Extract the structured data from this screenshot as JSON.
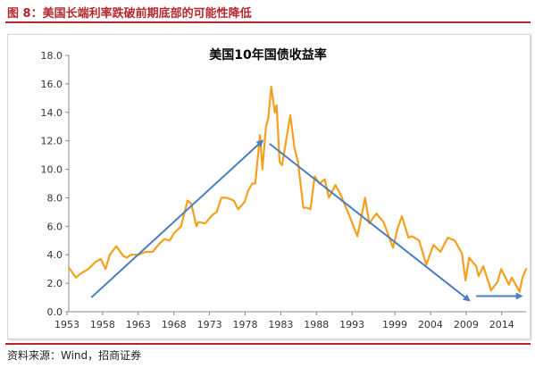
{
  "header": {
    "title": "图 8：美国长端利率跌破前期底部的可能性降低"
  },
  "footer": {
    "source": "资料来源：Wind，招商证券"
  },
  "colors": {
    "accent": "#b5272d",
    "series": "#f5a01e",
    "arrow": "#4a7ec2"
  },
  "chart_data": {
    "type": "line",
    "title": "美国10年国债收益率",
    "xlabel": "",
    "ylabel": "",
    "ylim": [
      0,
      18
    ],
    "yticks": [
      "0.0",
      "2.0",
      "4.0",
      "6.0",
      "8.0",
      "10.0",
      "12.0",
      "14.0",
      "16.0",
      "18.0"
    ],
    "xticks": [
      "1953",
      "1958",
      "1963",
      "1968",
      "1973",
      "1978",
      "1983",
      "1988",
      "1993",
      "1999",
      "2004",
      "2009",
      "2014"
    ],
    "x_range": [
      "1953-04",
      "2017-06"
    ],
    "grid": false,
    "legend": "none",
    "series": [
      {
        "x": [
          "1953-04",
          "1954-04",
          "1955-01",
          "1956-01",
          "1957-01",
          "1957-10",
          "1958-06",
          "1959-01",
          "1959-12",
          "1960-12",
          "1961-06",
          "1962-01",
          "1963-01",
          "1964-01",
          "1965-01",
          "1966-01",
          "1966-09",
          "1967-06",
          "1968-01",
          "1969-01",
          "1969-12",
          "1970-06",
          "1971-03",
          "1971-06",
          "1972-06",
          "1973-06",
          "1974-01",
          "1974-09",
          "1975-06",
          "1976-06",
          "1977-01",
          "1977-12",
          "1978-06",
          "1979-01",
          "1979-06",
          "1980-02",
          "1980-06",
          "1980-12",
          "1981-04",
          "1981-09",
          "1982-03",
          "1982-06",
          "1982-11",
          "1983-03",
          "1983-06",
          "1984-05",
          "1984-12",
          "1985-06",
          "1986-03",
          "1986-09",
          "1987-03",
          "1987-10",
          "1988-06",
          "1989-03",
          "1989-10",
          "1990-09",
          "1991-06",
          "1992-06",
          "1993-10",
          "1994-11",
          "1995-06",
          "1996-06",
          "1997-06",
          "1998-10",
          "1999-06",
          "2000-01",
          "2000-12",
          "2001-06",
          "2002-06",
          "2003-06",
          "2004-06",
          "2005-06",
          "2006-06",
          "2007-06",
          "2008-06",
          "2008-12",
          "2009-06",
          "2010-06",
          "2010-10",
          "2011-06",
          "2012-07",
          "2013-06",
          "2013-12",
          "2014-06",
          "2015-01",
          "2015-06",
          "2016-07",
          "2016-12",
          "2017-06"
        ],
        "values": [
          3.1,
          2.4,
          2.7,
          3.0,
          3.5,
          3.7,
          3.0,
          4.0,
          4.6,
          3.9,
          3.8,
          4.0,
          4.0,
          4.2,
          4.2,
          4.8,
          5.1,
          5.0,
          5.5,
          6.0,
          7.8,
          7.6,
          6.0,
          6.3,
          6.2,
          6.8,
          7.0,
          8.0,
          8.0,
          7.8,
          7.2,
          7.7,
          8.5,
          9.0,
          9.0,
          12.4,
          10.0,
          13.0,
          13.6,
          15.8,
          14.0,
          14.5,
          10.5,
          10.3,
          11.0,
          13.8,
          11.5,
          10.5,
          7.3,
          7.3,
          7.2,
          9.5,
          9.0,
          9.3,
          8.0,
          8.9,
          8.2,
          7.0,
          5.3,
          8.0,
          6.2,
          6.9,
          6.3,
          4.5,
          5.9,
          6.7,
          5.2,
          5.3,
          5.0,
          3.3,
          4.7,
          4.2,
          5.2,
          5.0,
          4.1,
          2.2,
          3.8,
          3.2,
          2.5,
          3.2,
          1.5,
          2.1,
          3.0,
          2.5,
          1.9,
          2.4,
          1.4,
          2.4,
          3.0
        ]
      }
    ],
    "annotations": [
      {
        "type": "arrow",
        "from": [
          "1956-06",
          1.0
        ],
        "to": [
          "1980-06",
          12.0
        ]
      },
      {
        "type": "arrow",
        "from": [
          "1981-06",
          11.8
        ],
        "to": [
          "2009-06",
          0.8
        ]
      },
      {
        "type": "arrow",
        "from": [
          "2010-06",
          1.1
        ],
        "to": [
          "2016-10",
          1.1
        ]
      }
    ]
  }
}
